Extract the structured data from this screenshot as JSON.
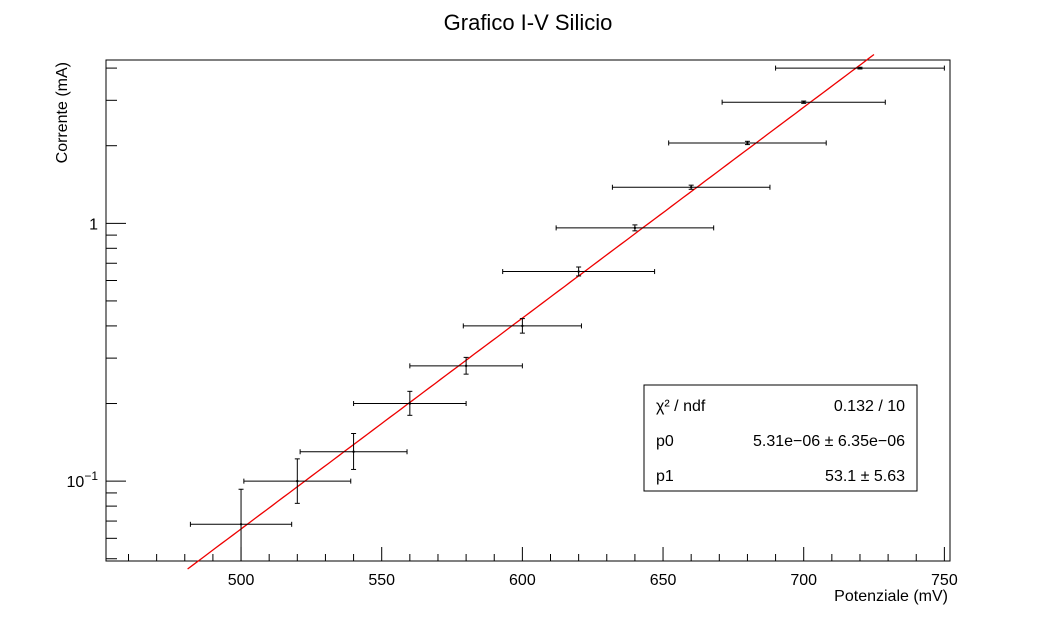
{
  "chart_data": {
    "type": "scatter",
    "title": "Grafico I-V Silicio",
    "xlabel": "Potenziale (mV)",
    "ylabel": "Corrente (mA)",
    "xlim": [
      452,
      752
    ],
    "ylim": [
      0.049,
      4.3
    ],
    "yscale": "log",
    "grid": false,
    "x_ticks": [
      500,
      550,
      600,
      650,
      700,
      750
    ],
    "y_tick_labels": [
      {
        "value": 1,
        "label": "1"
      },
      {
        "value": 0.1,
        "label": "10",
        "exponent": "−1"
      }
    ],
    "points": [
      {
        "x": 500,
        "xerr": 18,
        "y": 0.068,
        "ylo": 0.049,
        "yhi": 0.093
      },
      {
        "x": 520,
        "xerr": 19,
        "y": 0.1,
        "ylo": 0.082,
        "yhi": 0.122
      },
      {
        "x": 540,
        "xerr": 19,
        "y": 0.13,
        "ylo": 0.111,
        "yhi": 0.153
      },
      {
        "x": 560,
        "xerr": 20,
        "y": 0.2,
        "ylo": 0.18,
        "yhi": 0.223
      },
      {
        "x": 580,
        "xerr": 20,
        "y": 0.28,
        "ylo": 0.26,
        "yhi": 0.302
      },
      {
        "x": 600,
        "xerr": 21,
        "y": 0.4,
        "ylo": 0.375,
        "yhi": 0.427
      },
      {
        "x": 620,
        "xerr": 27,
        "y": 0.65,
        "ylo": 0.625,
        "yhi": 0.677
      },
      {
        "x": 640,
        "xerr": 28,
        "y": 0.96,
        "ylo": 0.935,
        "yhi": 0.986
      },
      {
        "x": 660,
        "xerr": 28,
        "y": 1.38,
        "ylo": 1.355,
        "yhi": 1.406
      },
      {
        "x": 680,
        "xerr": 28,
        "y": 2.05,
        "ylo": 2.02,
        "yhi": 2.08
      },
      {
        "x": 700,
        "xerr": 29,
        "y": 2.95,
        "ylo": 2.92,
        "yhi": 2.98
      },
      {
        "x": 720,
        "xerr": 30,
        "y": 4.0,
        "ylo": 3.97,
        "yhi": 4.03
      }
    ],
    "fit": {
      "color": "#ee0000",
      "p0": 5.31e-06,
      "p1": 53.1,
      "x_range": [
        481,
        725
      ]
    },
    "marker_color": "#000000",
    "stats": [
      {
        "label": "χ² / ndf",
        "value": "0.132 / 10"
      },
      {
        "label": "p0",
        "value": "5.31e−06 ± 6.35e−06"
      },
      {
        "label": "p1",
        "value": "53.1 ± 5.63"
      }
    ]
  }
}
